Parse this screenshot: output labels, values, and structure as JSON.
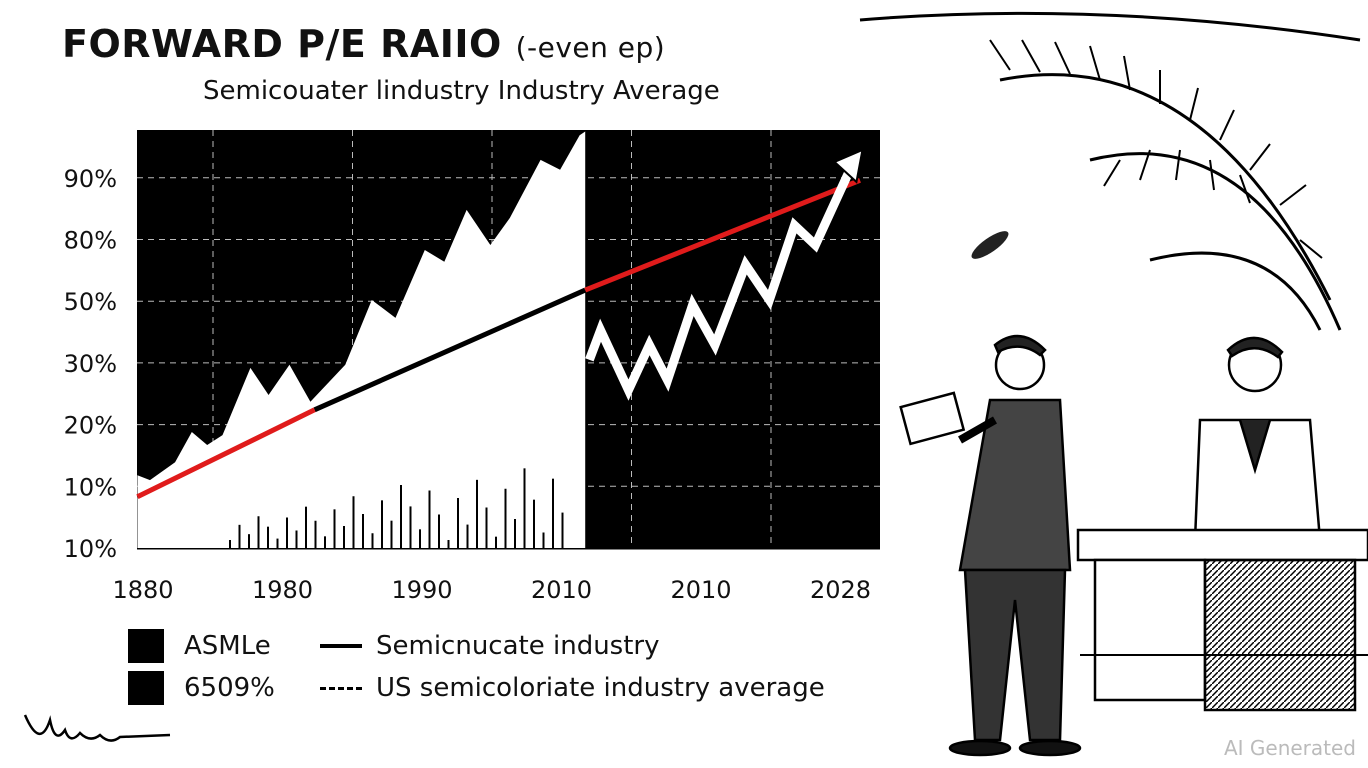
{
  "title": {
    "main": "FORWARD P/E RAIIO",
    "suffix": "(-even ep)"
  },
  "subtitle": "Semicouater lindustry Industry Average",
  "chart_data": {
    "type": "line",
    "title": "FORWARD P/E RAIIO (-even ep)",
    "subtitle": "Semicouater lindustry Industry Average",
    "x_tick_labels": [
      "1880",
      "1980",
      "1990",
      "2010",
      "2010",
      "2028"
    ],
    "y_tick_labels": [
      "10%",
      "10%",
      "20%",
      "30%",
      "50%",
      "80%",
      "90%"
    ],
    "units_note": "x in tick-index units (0 = first label), y in tick-index units (0 = bottom label)",
    "xlim": [
      -0.04,
      5.3
    ],
    "ylim": [
      0,
      6.75
    ],
    "grid": true,
    "series": [
      {
        "name": "ASMLe",
        "kind": "area",
        "color": "#ffffff",
        "x": [
          -0.04,
          0.05,
          0.23,
          0.35,
          0.46,
          0.57,
          0.77,
          0.9,
          1.05,
          1.2,
          1.45,
          1.64,
          1.81,
          2.02,
          2.16,
          2.32,
          2.49,
          2.63,
          2.85,
          2.99,
          3.13,
          3.17
        ],
        "y": [
          1.18,
          1.1,
          1.39,
          1.88,
          1.67,
          1.83,
          2.92,
          2.48,
          2.97,
          2.37,
          2.97,
          4.02,
          3.73,
          4.83,
          4.64,
          5.48,
          4.91,
          5.35,
          6.29,
          6.13,
          6.69,
          6.75
        ]
      },
      {
        "name": "Semicnucate industry",
        "kind": "line",
        "color": "#000000",
        "x": [
          1.23,
          3.17
        ],
        "y": [
          2.24,
          4.18
        ]
      },
      {
        "name": "US semicoloriate industry average (left)",
        "kind": "line",
        "color": "#e01b1b",
        "x": [
          -0.04,
          1.23
        ],
        "y": [
          0.83,
          2.24
        ]
      },
      {
        "name": "US semicoloriate industry average (right)",
        "kind": "line",
        "color": "#e01b1b",
        "x": [
          3.17,
          5.14
        ],
        "y": [
          4.18,
          5.96
        ]
      },
      {
        "name": "6509%",
        "kind": "line",
        "color": "#ffffff",
        "x": [
          3.2,
          3.28,
          3.48,
          3.63,
          3.76,
          3.94,
          4.1,
          4.32,
          4.49,
          4.67,
          4.82,
          5.1
        ],
        "y": [
          3.05,
          3.53,
          2.56,
          3.29,
          2.72,
          3.94,
          3.29,
          4.59,
          4.02,
          5.23,
          4.91,
          6.29
        ]
      }
    ],
    "legend": [
      {
        "label": "ASMLe",
        "marker": "square"
      },
      {
        "label": "6509%",
        "marker": "square"
      },
      {
        "label": "Semicnucate industry",
        "marker": "solid-line"
      },
      {
        "label": "US semicoloriate industry average",
        "marker": "dashed-line"
      }
    ],
    "legend_position": "bottom-left"
  },
  "signature": "Virna",
  "watermark": "AI Generated"
}
